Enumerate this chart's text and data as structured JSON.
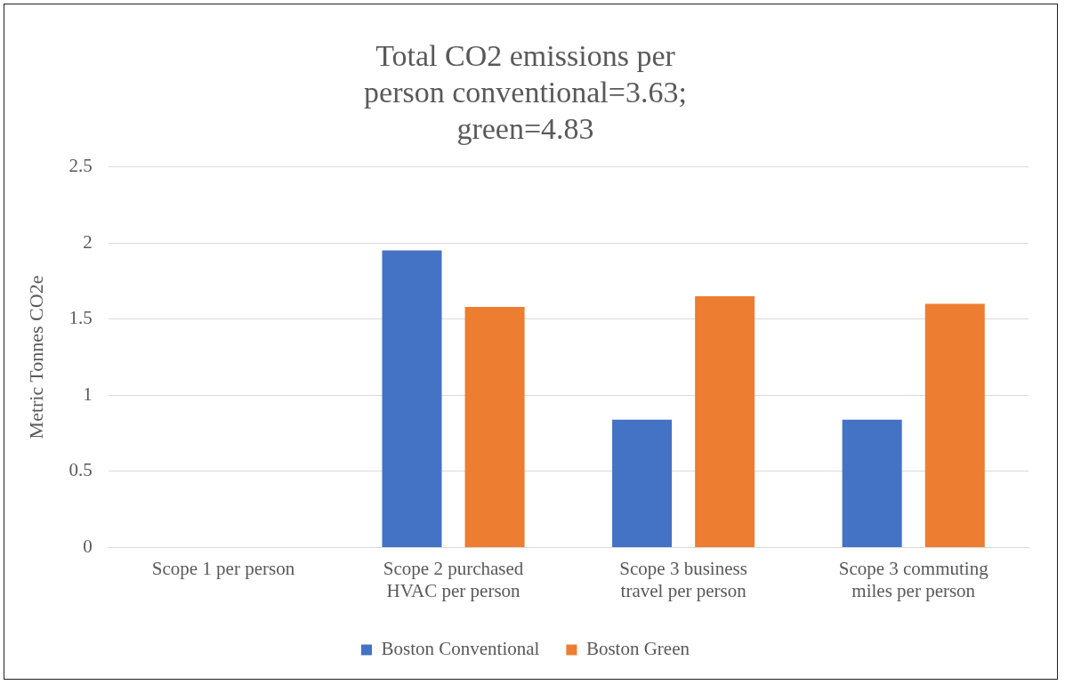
{
  "chart_data": {
    "type": "bar",
    "title": "Total CO2 emissions per person conventional=3.63; green=4.83",
    "ylabel": "Metric Tonnes CO2e",
    "categories": [
      "Scope 1 per person",
      "Scope 2 purchased HVAC per person",
      "Scope 3 business travel per person",
      "Scope 3 commuting miles per person"
    ],
    "series": [
      {
        "name": "Boston Conventional",
        "color": "#4472c4",
        "values": [
          0,
          1.95,
          0.84,
          0.84
        ]
      },
      {
        "name": "Boston Green",
        "color": "#ed7d31",
        "values": [
          0,
          1.58,
          1.65,
          1.6
        ]
      }
    ],
    "ylim": [
      0,
      2.5
    ],
    "yticks": [
      0,
      0.5,
      1,
      1.5,
      2,
      2.5
    ],
    "grid": "y",
    "legend": "bottom"
  }
}
